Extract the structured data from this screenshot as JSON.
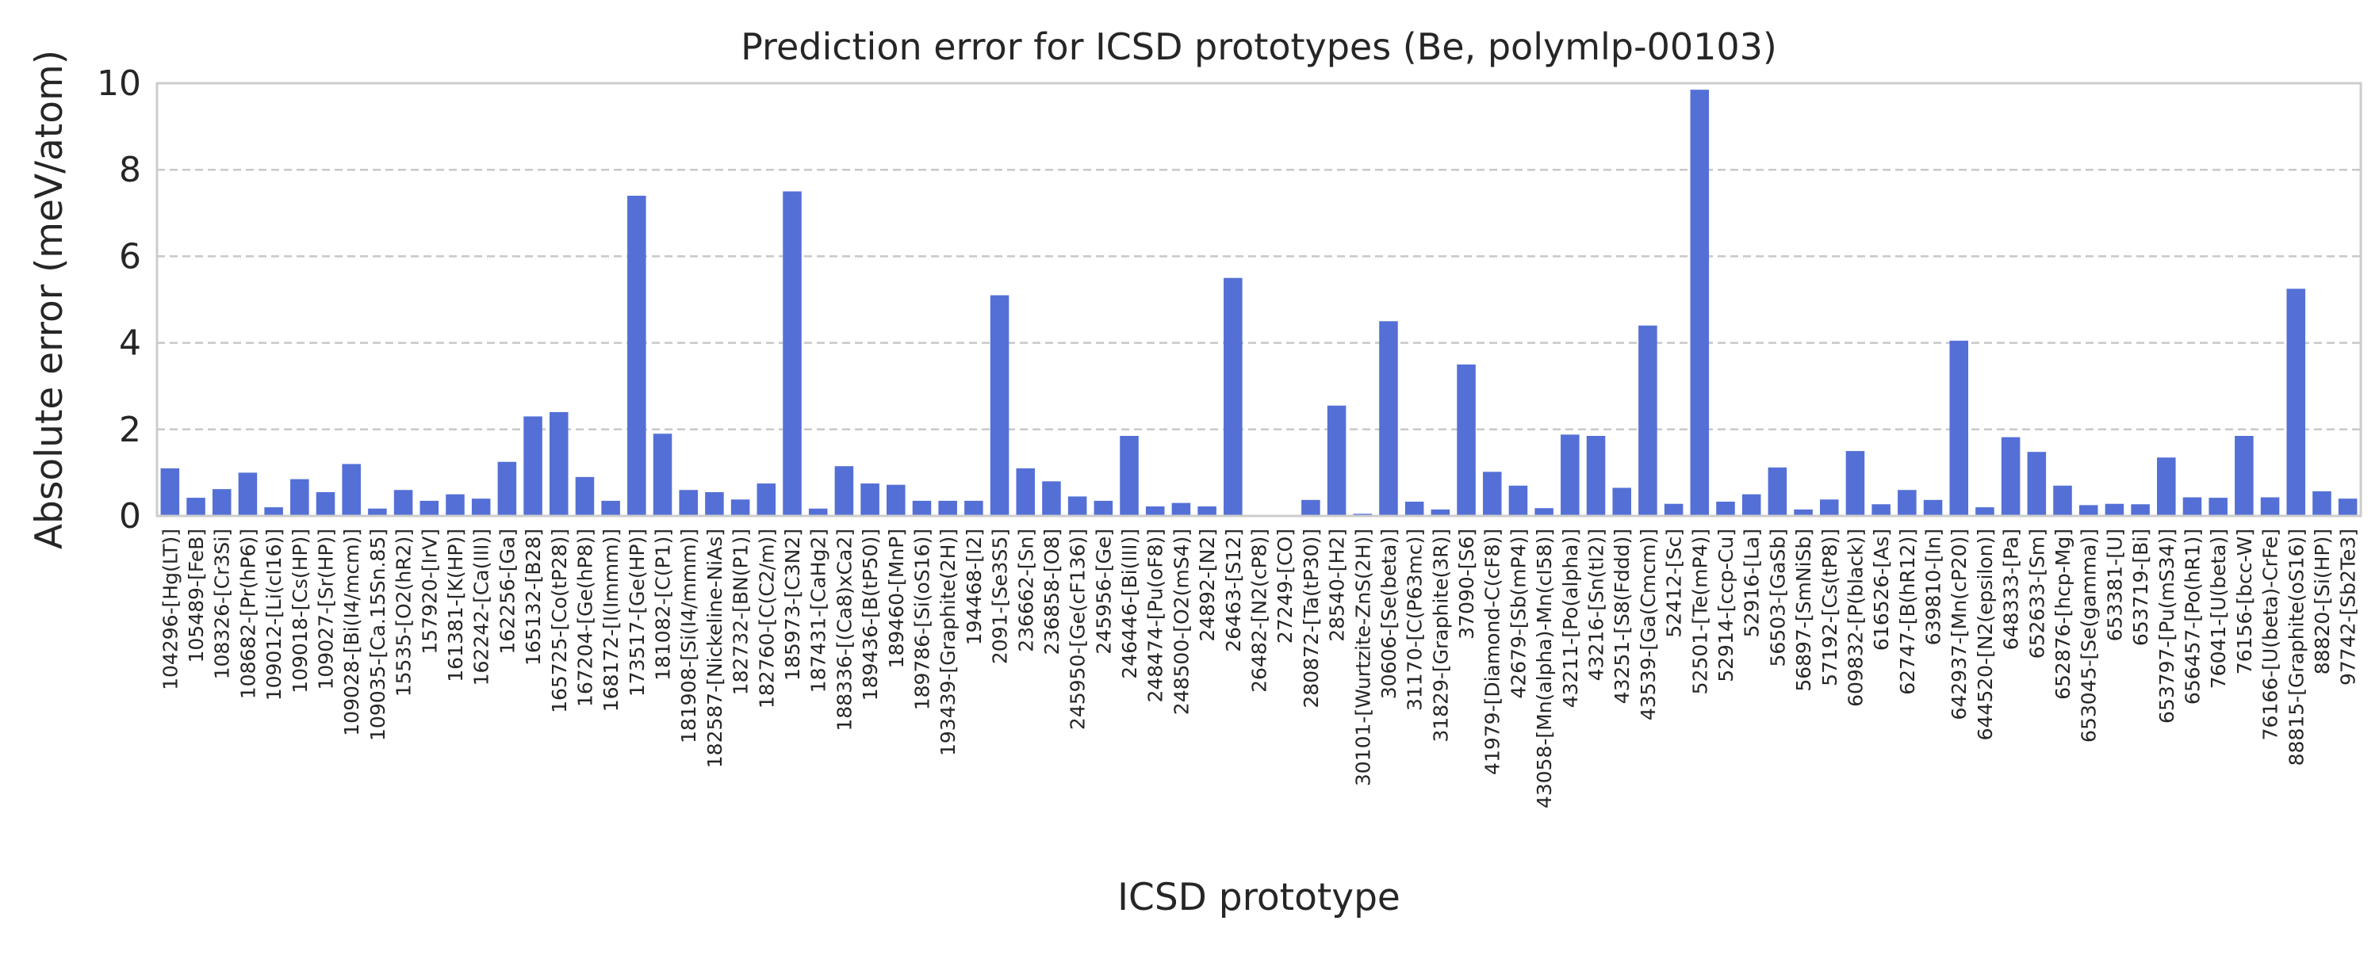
{
  "chart_data": {
    "type": "bar",
    "title": "Prediction error for ICSD prototypes (Be, polymlp-00103)",
    "xlabel": "ICSD prototype",
    "ylabel": "Absolute error (meV/atom)",
    "ylim": [
      0,
      10
    ],
    "yticks": [
      "0",
      "2",
      "4",
      "6",
      "8",
      "10"
    ],
    "grid": "horizontal dashed",
    "bar_color": "#5470d6",
    "categories": [
      "104296-[Hg(LT)]",
      "105489-[FeB]",
      "108326-[Cr3Si]",
      "108682-[Pr(hP6)]",
      "109012-[Li(cI16)]",
      "109018-[Cs(HP)]",
      "109027-[Sr(HP)]",
      "109028-[Bi(I4/mcm)]",
      "109035-[Ca.15Sn.85]",
      "15535-[O2(hR2)]",
      "157920-[IrV]",
      "161381-[K(HP)]",
      "162242-[Ca(III)]",
      "162256-[Ga]",
      "165132-[B28]",
      "165725-[Co(tP28)]",
      "167204-[Ge(hP8)]",
      "168172-[I(Immm)]",
      "173517-[Ge(HP)]",
      "181082-[C(P1)]",
      "181908-[Si(I4/mmm)]",
      "182587-[Nickeline-NiAs]",
      "182732-[BN(P1)]",
      "182760-[C(C2/m)]",
      "185973-[C3N2]",
      "187431-[CaHg2]",
      "188336-[(Ca8)xCa2]",
      "189436-[B(tP50)]",
      "189460-[MnP]",
      "189786-[Si(oS16)]",
      "193439-[Graphite(2H)]",
      "194468-[I2]",
      "2091-[Se3S5]",
      "236662-[Sn]",
      "236858-[O8]",
      "245950-[Ge(cF136)]",
      "245956-[Ge]",
      "246446-[Bi(III)]",
      "248474-[Pu(oF8)]",
      "248500-[O2(mS4)]",
      "24892-[N2]",
      "26463-[S12]",
      "26482-[N2(cP8)]",
      "27249-[CO]",
      "280872-[Ta(tP30)]",
      "28540-[H2]",
      "30101-[Wurtzite-ZnS(2H)]",
      "30606-[Se(beta)]",
      "31170-[C(P63mc)]",
      "31829-[Graphite(3R)]",
      "37090-[S6]",
      "41979-[Diamond-C(cF8)]",
      "42679-[Sb(mP4)]",
      "43058-[Mn(alpha)-Mn(cI58)]",
      "43211-[Po(alpha)]",
      "43216-[Sn(tI2)]",
      "43251-[S8(Fddd)]",
      "43539-[Ga(Cmcm)]",
      "52412-[Sc]",
      "52501-[Te(mP4)]",
      "52914-[ccp-Cu]",
      "52916-[La]",
      "56503-[GaSb]",
      "56897-[SmNiSb]",
      "57192-[Cs(tP8)]",
      "609832-[P(black)]",
      "616526-[As]",
      "62747-[B(hR12)]",
      "639810-[In]",
      "642937-[Mn(cP20)]",
      "644520-[N2(epsilon)]",
      "648333-[Pa]",
      "652633-[Sm]",
      "652876-[hcp-Mg]",
      "653045-[Se(gamma)]",
      "653381-[U]",
      "653719-[Bi]",
      "653797-[Pu(mS34)]",
      "656457-[Po(hR1)]",
      "76041-[U(beta)]",
      "76156-[bcc-W]",
      "76166-[U(beta)-CrFe]",
      "88815-[Graphite(oS16)]",
      "88820-[Si(HP)]",
      "97742-[Sb2Te3]"
    ],
    "values": [
      1.1,
      0.42,
      0.62,
      1.0,
      0.2,
      0.85,
      0.55,
      1.2,
      0.17,
      0.6,
      0.35,
      0.5,
      0.4,
      1.25,
      2.3,
      2.4,
      0.9,
      0.35,
      7.4,
      1.9,
      0.6,
      0.55,
      0.38,
      0.75,
      7.5,
      0.17,
      1.15,
      0.75,
      0.72,
      0.35,
      0.35,
      0.35,
      5.1,
      1.1,
      0.8,
      0.45,
      0.35,
      1.85,
      0.22,
      0.3,
      0.22,
      5.5,
      0.02,
      0.02,
      0.37,
      2.55,
      0.05,
      4.5,
      0.33,
      0.15,
      3.5,
      1.02,
      0.7,
      0.18,
      1.88,
      1.85,
      0.65,
      4.4,
      0.28,
      9.85,
      0.33,
      0.5,
      1.12,
      0.15,
      0.38,
      1.5,
      0.27,
      0.6,
      0.37,
      4.05,
      0.2,
      1.82,
      1.48,
      0.7,
      0.25,
      0.28,
      0.27,
      1.35,
      0.43,
      0.42,
      1.85,
      0.43,
      5.25,
      0.57,
      0.4
    ]
  }
}
